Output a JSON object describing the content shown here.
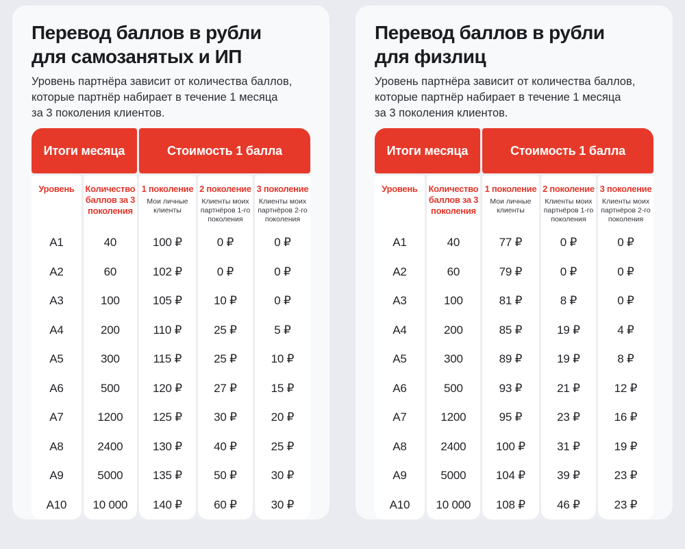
{
  "page": {
    "background": "#e9ebf1",
    "accent_red": "#e6392a"
  },
  "cards": [
    {
      "title_lines": [
        "Перевод баллов в рубли",
        "для самозанятых и ИП"
      ],
      "description_lines": [
        "Уровень партнёра зависит от количества баллов,",
        "которые партнёр набирает в течение 1 месяца",
        "за 3 поколения клиентов."
      ],
      "table": {
        "group_headers": [
          "Итоги месяца",
          "Стоимость 1 балла"
        ],
        "columns": [
          {
            "label": "Уровень",
            "sublabel": ""
          },
          {
            "label": "Количество баллов за 3 поколения",
            "sublabel": ""
          },
          {
            "label": "1 поколение",
            "sublabel": "Мои личные клиенты"
          },
          {
            "label": "2 поколение",
            "sublabel": "Клиенты моих партнёров 1-го поколения"
          },
          {
            "label": "3 поколение",
            "sublabel": "Клиенты моих партнёров 2-го поколения"
          }
        ],
        "rows": [
          [
            "A1",
            "40",
            "100 ₽",
            "0 ₽",
            "0 ₽"
          ],
          [
            "A2",
            "60",
            "102 ₽",
            "0 ₽",
            "0 ₽"
          ],
          [
            "A3",
            "100",
            "105 ₽",
            "10 ₽",
            "0 ₽"
          ],
          [
            "A4",
            "200",
            "110 ₽",
            "25 ₽",
            "5 ₽"
          ],
          [
            "A5",
            "300",
            "115 ₽",
            "25 ₽",
            "10 ₽"
          ],
          [
            "A6",
            "500",
            "120 ₽",
            "27 ₽",
            "15 ₽"
          ],
          [
            "A7",
            "1200",
            "125 ₽",
            "30 ₽",
            "20 ₽"
          ],
          [
            "A8",
            "2400",
            "130 ₽",
            "40 ₽",
            "25 ₽"
          ],
          [
            "A9",
            "5000",
            "135 ₽",
            "50 ₽",
            "30 ₽"
          ],
          [
            "A10",
            "10 000",
            "140 ₽",
            "60 ₽",
            "30 ₽"
          ]
        ]
      }
    },
    {
      "title_lines": [
        "Перевод баллов в рубли",
        "для физлиц"
      ],
      "description_lines": [
        "Уровень партнёра зависит от количества баллов,",
        "которые партнёр набирает в течение 1 месяца",
        "за 3 поколения клиентов."
      ],
      "table": {
        "group_headers": [
          "Итоги месяца",
          "Стоимость 1 балла"
        ],
        "columns": [
          {
            "label": "Уровень",
            "sublabel": ""
          },
          {
            "label": "Количество баллов за 3 поколения",
            "sublabel": ""
          },
          {
            "label": "1 поколение",
            "sublabel": "Мои личные клиенты"
          },
          {
            "label": "2 поколение",
            "sublabel": "Клиенты моих партнёров 1-го поколения"
          },
          {
            "label": "3 поколение",
            "sublabel": "Клиенты моих партнёров 2-го поколения"
          }
        ],
        "rows": [
          [
            "A1",
            "40",
            "77 ₽",
            "0 ₽",
            "0 ₽"
          ],
          [
            "A2",
            "60",
            "79 ₽",
            "0 ₽",
            "0 ₽"
          ],
          [
            "A3",
            "100",
            "81 ₽",
            "8 ₽",
            "0 ₽"
          ],
          [
            "A4",
            "200",
            "85 ₽",
            "19 ₽",
            "4 ₽"
          ],
          [
            "A5",
            "300",
            "89 ₽",
            "19 ₽",
            "8 ₽"
          ],
          [
            "A6",
            "500",
            "93 ₽",
            "21 ₽",
            "12 ₽"
          ],
          [
            "A7",
            "1200",
            "95 ₽",
            "23 ₽",
            "16 ₽"
          ],
          [
            "A8",
            "2400",
            "100 ₽",
            "31 ₽",
            "19 ₽"
          ],
          [
            "A9",
            "5000",
            "104 ₽",
            "39 ₽",
            "23 ₽"
          ],
          [
            "A10",
            "10 000",
            "108 ₽",
            "46 ₽",
            "23 ₽"
          ]
        ]
      }
    }
  ]
}
